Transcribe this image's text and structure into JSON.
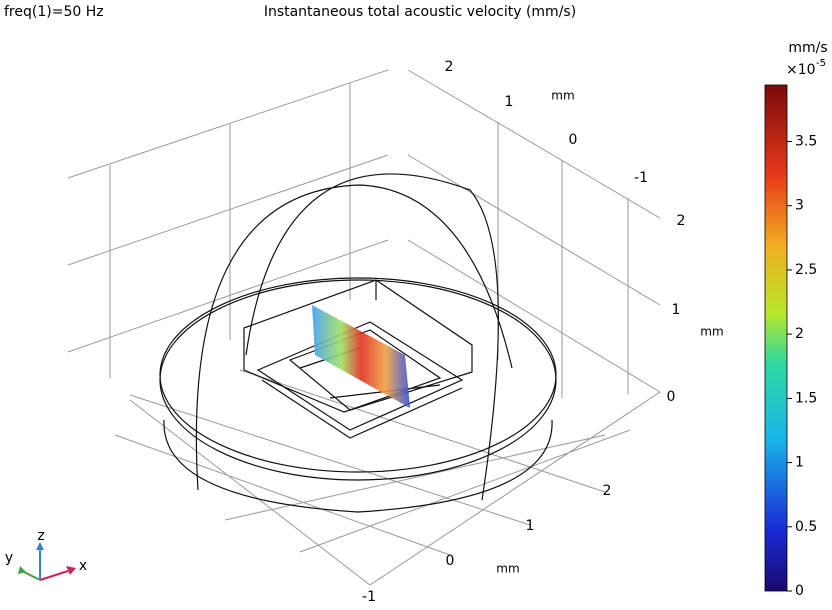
{
  "header": {
    "left": "freq(1)=50 Hz",
    "title": "Instantaneous total acoustic velocity (mm/s)"
  },
  "colorbar": {
    "unit": "mm/s",
    "scale_base": "×10",
    "scale_exp": "-5",
    "lim": [
      0,
      3.94
    ],
    "ticks": [
      0,
      0.5,
      1,
      1.5,
      2,
      2.5,
      3,
      3.5
    ]
  },
  "axes": {
    "x_ticks": [
      "-1",
      "0",
      "1",
      "2"
    ],
    "x_unit": "mm",
    "y_ticks": [
      "2",
      "1",
      "0",
      "-1"
    ],
    "y_unit": "mm",
    "z_ticks": [
      "0",
      "1",
      "2"
    ],
    "z_unit": "mm"
  },
  "triad": {
    "x": "x",
    "y": "y",
    "z": "z"
  }
}
